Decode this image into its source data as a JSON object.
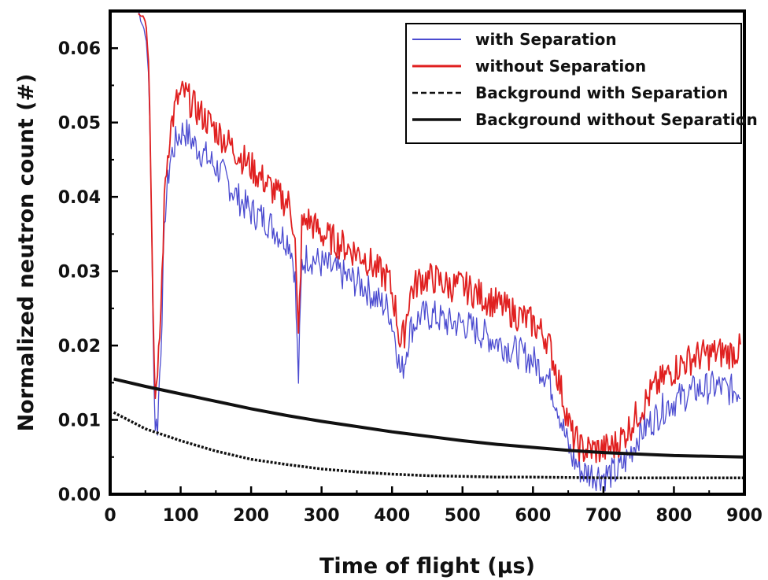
{
  "chart_data": {
    "type": "line",
    "xlabel": "Time of flight (µs)",
    "ylabel": "Normalized neutron count (#)",
    "xlim": [
      0,
      900
    ],
    "ylim": [
      0,
      0.065
    ],
    "x_ticks": [
      "0",
      "100",
      "200",
      "300",
      "400",
      "500",
      "600",
      "700",
      "800",
      "900"
    ],
    "y_ticks": [
      "0.00",
      "0.01",
      "0.02",
      "0.03",
      "0.04",
      "0.05",
      "0.06"
    ],
    "grid": false,
    "legend_position": "top-right",
    "series": [
      {
        "name": "with Separation",
        "color": "#4b4bd0",
        "style": "thin-line",
        "points": [
          [
            40,
            0.065
          ],
          [
            50,
            0.062
          ],
          [
            55,
            0.056
          ],
          [
            60,
            0.03
          ],
          [
            63,
            0.01
          ],
          [
            67,
            0.009
          ],
          [
            72,
            0.02
          ],
          [
            78,
            0.038
          ],
          [
            85,
            0.045
          ],
          [
            95,
            0.048
          ],
          [
            105,
            0.049
          ],
          [
            120,
            0.047
          ],
          [
            140,
            0.045
          ],
          [
            160,
            0.043
          ],
          [
            180,
            0.04
          ],
          [
            200,
            0.038
          ],
          [
            220,
            0.037
          ],
          [
            240,
            0.035
          ],
          [
            255,
            0.034
          ],
          [
            262,
            0.03
          ],
          [
            267,
            0.015
          ],
          [
            272,
            0.031
          ],
          [
            280,
            0.032
          ],
          [
            300,
            0.031
          ],
          [
            320,
            0.03
          ],
          [
            340,
            0.029
          ],
          [
            360,
            0.028
          ],
          [
            380,
            0.026
          ],
          [
            395,
            0.025
          ],
          [
            405,
            0.021
          ],
          [
            412,
            0.016
          ],
          [
            418,
            0.018
          ],
          [
            425,
            0.022
          ],
          [
            440,
            0.024
          ],
          [
            460,
            0.024
          ],
          [
            480,
            0.023
          ],
          [
            500,
            0.023
          ],
          [
            520,
            0.022
          ],
          [
            540,
            0.021
          ],
          [
            560,
            0.02
          ],
          [
            580,
            0.019
          ],
          [
            600,
            0.018
          ],
          [
            620,
            0.016
          ],
          [
            635,
            0.012
          ],
          [
            645,
            0.008
          ],
          [
            655,
            0.005
          ],
          [
            670,
            0.003
          ],
          [
            700,
            0.0025
          ],
          [
            720,
            0.003
          ],
          [
            735,
            0.005
          ],
          [
            750,
            0.008
          ],
          [
            770,
            0.01
          ],
          [
            790,
            0.012
          ],
          [
            810,
            0.013
          ],
          [
            830,
            0.014
          ],
          [
            860,
            0.0145
          ],
          [
            880,
            0.014
          ],
          [
            895,
            0.014
          ]
        ]
      },
      {
        "name": "without Separation",
        "color": "#e02020",
        "style": "line",
        "points": [
          [
            40,
            0.065
          ],
          [
            50,
            0.064
          ],
          [
            55,
            0.058
          ],
          [
            60,
            0.03
          ],
          [
            63,
            0.015
          ],
          [
            67,
            0.014
          ],
          [
            72,
            0.025
          ],
          [
            78,
            0.042
          ],
          [
            85,
            0.049
          ],
          [
            95,
            0.053
          ],
          [
            105,
            0.054
          ],
          [
            120,
            0.052
          ],
          [
            140,
            0.05
          ],
          [
            160,
            0.048
          ],
          [
            180,
            0.046
          ],
          [
            200,
            0.044
          ],
          [
            220,
            0.042
          ],
          [
            240,
            0.04
          ],
          [
            255,
            0.039
          ],
          [
            262,
            0.035
          ],
          [
            267,
            0.02
          ],
          [
            272,
            0.036
          ],
          [
            280,
            0.037
          ],
          [
            300,
            0.035
          ],
          [
            320,
            0.034
          ],
          [
            340,
            0.033
          ],
          [
            360,
            0.032
          ],
          [
            380,
            0.03
          ],
          [
            395,
            0.029
          ],
          [
            405,
            0.025
          ],
          [
            412,
            0.02
          ],
          [
            418,
            0.022
          ],
          [
            425,
            0.027
          ],
          [
            440,
            0.029
          ],
          [
            460,
            0.029
          ],
          [
            480,
            0.028
          ],
          [
            500,
            0.028
          ],
          [
            520,
            0.027
          ],
          [
            540,
            0.026
          ],
          [
            560,
            0.025
          ],
          [
            580,
            0.024
          ],
          [
            600,
            0.023
          ],
          [
            620,
            0.021
          ],
          [
            635,
            0.016
          ],
          [
            645,
            0.012
          ],
          [
            655,
            0.008
          ],
          [
            670,
            0.006
          ],
          [
            700,
            0.006
          ],
          [
            715,
            0.0065
          ],
          [
            730,
            0.008
          ],
          [
            750,
            0.011
          ],
          [
            770,
            0.014
          ],
          [
            790,
            0.016
          ],
          [
            810,
            0.0175
          ],
          [
            830,
            0.0185
          ],
          [
            860,
            0.019
          ],
          [
            880,
            0.019
          ],
          [
            895,
            0.0195
          ]
        ]
      },
      {
        "name": "Background with Separation",
        "color": "#111111",
        "style": "dashed",
        "points": [
          [
            5,
            0.011
          ],
          [
            50,
            0.0088
          ],
          [
            100,
            0.0072
          ],
          [
            150,
            0.0058
          ],
          [
            200,
            0.0047
          ],
          [
            250,
            0.004
          ],
          [
            300,
            0.0034
          ],
          [
            350,
            0.003
          ],
          [
            400,
            0.0027
          ],
          [
            450,
            0.0025
          ],
          [
            500,
            0.0024
          ],
          [
            550,
            0.0023
          ],
          [
            600,
            0.0023
          ],
          [
            700,
            0.0022
          ],
          [
            800,
            0.0022
          ],
          [
            900,
            0.0022
          ]
        ]
      },
      {
        "name": "Background without Separation",
        "color": "#111111",
        "style": "solid-thick",
        "points": [
          [
            5,
            0.0155
          ],
          [
            50,
            0.0145
          ],
          [
            100,
            0.0135
          ],
          [
            150,
            0.0125
          ],
          [
            200,
            0.0115
          ],
          [
            250,
            0.0106
          ],
          [
            300,
            0.0098
          ],
          [
            350,
            0.0091
          ],
          [
            400,
            0.0084
          ],
          [
            450,
            0.0078
          ],
          [
            500,
            0.0072
          ],
          [
            550,
            0.0067
          ],
          [
            600,
            0.0063
          ],
          [
            650,
            0.0059
          ],
          [
            700,
            0.0056
          ],
          [
            750,
            0.0054
          ],
          [
            800,
            0.0052
          ],
          [
            850,
            0.0051
          ],
          [
            900,
            0.005
          ]
        ]
      }
    ]
  }
}
